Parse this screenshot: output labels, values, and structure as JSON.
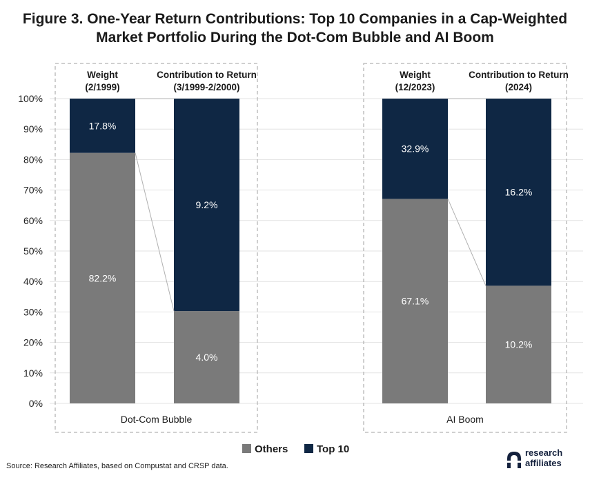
{
  "title": "Figure 3. One-Year Return Contributions: Top 10 Companies in a Cap-Weighted Market Portfolio During the Dot-Com Bubble and AI Boom",
  "title_lines": [
    "Figure 3. One-Year Return Contributions: Top 10 Companies in a Cap-Weighted",
    "Market Portfolio During the Dot-Com Bubble and AI Boom"
  ],
  "source": "Source: Research Affiliates, based on Compustat and CRSP data.",
  "logo": {
    "line1": "research",
    "line2": "affiliates"
  },
  "colors": {
    "Others": "#7a7a7a",
    "Top 10": "#0f2744"
  },
  "chart_data": {
    "type": "bar",
    "stacked": true,
    "yticks": [
      "0%",
      "10%",
      "20%",
      "30%",
      "40%",
      "50%",
      "60%",
      "70%",
      "80%",
      "90%",
      "100%"
    ],
    "ylim": [
      0,
      100
    ],
    "grid": true,
    "legend_position": "bottom",
    "legend": [
      "Others",
      "Top 10"
    ],
    "panels": [
      {
        "name": "Dot-Com Bubble",
        "bars": [
          {
            "label_line1": "Weight",
            "label_line2": "(2/1999)",
            "others": 82.2,
            "top10": 17.8,
            "others_label": "82.2%",
            "top10_label": "17.8%"
          },
          {
            "label_line1": "Contribution to Return",
            "label_line2": "(3/1999-2/2000)",
            "others": 30.3,
            "top10": 69.7,
            "others_label": "4.0%",
            "top10_label": "9.2%"
          }
        ]
      },
      {
        "name": "AI Boom",
        "bars": [
          {
            "label_line1": "Weight",
            "label_line2": "(12/2023)",
            "others": 67.1,
            "top10": 32.9,
            "others_label": "67.1%",
            "top10_label": "32.9%"
          },
          {
            "label_line1": "Contribution to Return",
            "label_line2": "(2024)",
            "others": 38.6,
            "top10": 61.4,
            "others_label": "10.2%",
            "top10_label": "16.2%"
          }
        ]
      }
    ]
  }
}
